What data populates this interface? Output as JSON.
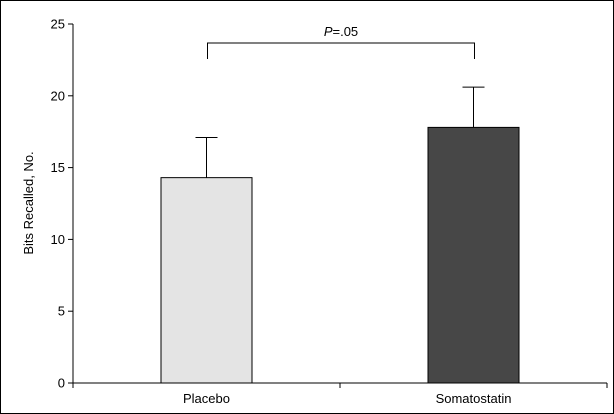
{
  "chart_data": {
    "type": "bar",
    "categories": [
      "Placebo",
      "Somatostatin"
    ],
    "values": [
      14.3,
      17.8
    ],
    "errors": [
      2.8,
      2.8
    ],
    "colors": [
      "#e4e4e4",
      "#474747"
    ],
    "title": "",
    "xlabel": "",
    "ylabel": "Bits Recalled, No.",
    "ylim": [
      0,
      25
    ],
    "yticks": [
      0,
      5,
      10,
      15,
      20,
      25
    ],
    "grid": false,
    "significance": {
      "between": [
        "Placebo",
        "Somatostatin"
      ],
      "p_italic": "P",
      "p_value": "=.05"
    }
  }
}
